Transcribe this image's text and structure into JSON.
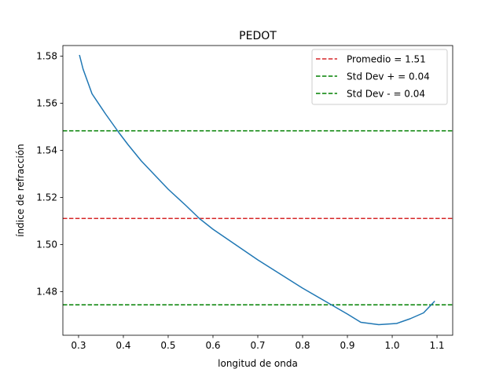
{
  "chart_data": {
    "type": "line",
    "title": "PEDOT",
    "xlabel": "longitud de onda",
    "ylabel": "índice de refracción",
    "xlim": [
      0.265,
      1.135
    ],
    "ylim": [
      1.4615,
      1.5845
    ],
    "xticks": [
      0.3,
      0.4,
      0.5,
      0.6,
      0.7,
      0.8,
      0.9,
      1.0,
      1.1
    ],
    "xtick_labels": [
      "0.3",
      "0.4",
      "0.5",
      "0.6",
      "0.7",
      "0.8",
      "0.9",
      "1.0",
      "1.1"
    ],
    "yticks": [
      1.48,
      1.5,
      1.52,
      1.54,
      1.56,
      1.58
    ],
    "ytick_labels": [
      "1.48",
      "1.50",
      "1.52",
      "1.54",
      "1.56",
      "1.58"
    ],
    "grid": false,
    "legend_position": "top-right",
    "series": [
      {
        "color": "#1f77b4",
        "x": [
          0.302,
          0.31,
          0.33,
          0.36,
          0.39,
          0.41,
          0.44,
          0.47,
          0.5,
          0.54,
          0.57,
          0.6,
          0.65,
          0.7,
          0.75,
          0.8,
          0.85,
          0.9,
          0.93,
          0.97,
          1.01,
          1.04,
          1.07,
          1.095
        ],
        "y": [
          1.5805,
          1.5745,
          1.564,
          1.5555,
          1.5475,
          1.5425,
          1.5355,
          1.5295,
          1.5235,
          1.5165,
          1.511,
          1.5065,
          1.5,
          1.4935,
          1.4875,
          1.4815,
          1.476,
          1.4705,
          1.467,
          1.466,
          1.4665,
          1.4685,
          1.471,
          1.476
        ]
      }
    ],
    "hlines": [
      {
        "name": "Promedio = 1.51",
        "y": 1.5111,
        "color": "#d62728",
        "style": "dashed"
      },
      {
        "name": "Std Dev + = 0.04",
        "y": 1.5483,
        "color": "#008000",
        "style": "dashed"
      },
      {
        "name": "Std Dev - = 0.04",
        "y": 1.4744,
        "color": "#008000",
        "style": "dashed"
      }
    ]
  }
}
